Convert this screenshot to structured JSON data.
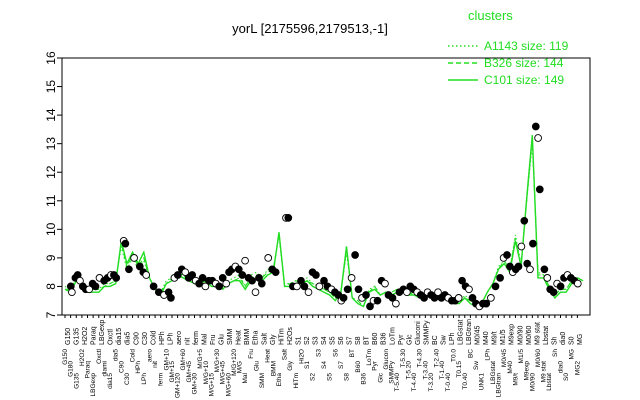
{
  "chart_data": {
    "type": "line",
    "title": "yorL [2175596,2179513,-1]",
    "xlabel": "",
    "ylabel": "",
    "ylim": [
      7,
      16
    ],
    "yticks": [
      7,
      8,
      9,
      10,
      11,
      12,
      13,
      14,
      15,
      16
    ],
    "grid": false,
    "legend_title": "clusters",
    "legend_position": "top-right",
    "legend": [
      {
        "name": "A1143 size: 119",
        "style": "dotted"
      },
      {
        "name": "B326 size: 144",
        "style": "dashed"
      },
      {
        "name": "C101 size: 149",
        "style": "solid"
      }
    ],
    "x_tick_labels": [
      "G150",
      "G180",
      "G135",
      "H2O2",
      "Paraq",
      "LBGexp",
      "Oxctl",
      "diami",
      "dia15",
      "dia5",
      "C90",
      "C30",
      "Cold",
      "HPh",
      "LPh",
      "aero",
      "nit",
      "ferm",
      "GM+10",
      "GM+15",
      "GM+120",
      "GM+60",
      "GM+45",
      "GM+30",
      "M/G+5",
      "M/G+10",
      "M/G+15",
      "M/G+30",
      "M/G+45",
      "M/G+60",
      "M/G+120",
      "M/G",
      "Mal",
      "Fru",
      "Glu",
      "SMM",
      "Heat",
      "BMM",
      "Etha",
      "Salt",
      "Gly",
      "HiTm",
      "Hi2O",
      "S1",
      "S2",
      "S3",
      "S4",
      "S5",
      "S6",
      "S7",
      "S8",
      "BT",
      "B60",
      "B36",
      "LoTm",
      "Pyr",
      "Glc",
      "Glucon",
      "SMMPy",
      "T-5.40",
      "T-5.30",
      "T-5.20",
      "T-4.40",
      "T-4.30",
      "T-3.40",
      "T-3.20",
      "T-2.40",
      "T-1.40",
      "T-0.40",
      "T0.0",
      "T0.15",
      "T0.40",
      "BC",
      "Sw",
      "UNK1",
      "LPh",
      "LBGstat",
      "LBGtran",
      "M0/45",
      "M40",
      "M9/t",
      "M1/5",
      "M9exp",
      "M0/90",
      "M0/60",
      "M9 stat",
      "Lbstat",
      "Sh",
      "dia0",
      "S0",
      "MG",
      "MG2"
    ],
    "marked_labels": [
      "G150",
      "G135",
      "H2O2",
      "Paraq",
      "LBGexp",
      "Oxctl",
      "dia15",
      "dia5",
      "C90",
      "C30",
      "Cold",
      "HPh",
      "LPh",
      "aero",
      "nit",
      "ferm",
      "Mal",
      "Fru",
      "Glu",
      "SMM",
      "Heat",
      "BMM",
      "Etha",
      "Salt",
      "Gly",
      "HiTm",
      "H2Os",
      "S1",
      "S2",
      "S3",
      "S4",
      "S5",
      "S6",
      "S7",
      "S8",
      "BT",
      "B60",
      "B36",
      "LoTm",
      "Pyr",
      "Glc",
      "Gluconi",
      "SMMPy",
      "BC",
      "Sw",
      "LPh",
      "LBGstat",
      "LBGtran",
      "M0/45",
      "M40",
      "M9/t",
      "M1/5",
      "M9exp",
      "M0/90",
      "M0/60",
      "M9 stat",
      "Lbstat",
      "Sh",
      "dia0",
      "S0",
      "MG"
    ],
    "series": [
      {
        "name": "A1143 size: 119",
        "style": "dotted",
        "values": [
          8.0,
          7.9,
          8.3,
          8.2,
          7.8,
          7.9,
          7.9,
          8.1,
          8.1,
          8.2,
          9.4,
          8.6,
          9.0,
          8.6,
          8.9,
          8.3,
          7.9,
          7.8,
          8.2,
          8.3,
          8.5,
          8.4,
          8.2,
          8.1,
          8.2,
          8.3,
          8.1,
          8.1,
          8.0,
          8.2,
          8.3,
          8.4,
          8.0,
          8.4,
          8.5,
          8.3,
          8.6,
          8.6,
          9.8,
          8.1,
          8.1,
          8.2,
          8.2,
          8.3,
          8.1,
          8.0,
          7.9,
          7.8,
          7.6,
          7.8,
          9.2,
          7.6,
          7.5,
          7.3,
          7.9,
          8.0,
          7.7,
          7.8,
          7.8,
          7.9,
          7.9,
          7.8,
          7.8,
          7.7,
          7.8,
          7.8,
          7.7,
          7.7,
          7.6,
          7.5,
          7.4,
          7.7,
          7.5,
          7.4,
          7.4,
          7.8,
          8.1,
          8.7,
          8.9,
          8.6,
          9.8,
          8.8,
          11.0,
          13.0,
          8.5,
          8.4,
          8.0,
          7.7,
          7.9,
          7.9,
          8.2,
          8.3,
          8.2
        ]
      },
      {
        "name": "B326 size: 144",
        "style": "dashed",
        "values": [
          7.9,
          7.9,
          8.2,
          8.1,
          7.8,
          7.9,
          7.9,
          8.0,
          8.1,
          8.2,
          9.5,
          8.7,
          9.1,
          8.7,
          9.0,
          8.3,
          7.9,
          7.8,
          8.1,
          8.3,
          8.4,
          8.4,
          8.2,
          8.1,
          8.1,
          8.2,
          8.1,
          8.0,
          8.0,
          8.1,
          8.2,
          8.3,
          8.0,
          8.3,
          8.4,
          8.3,
          8.5,
          8.6,
          9.8,
          8.0,
          8.1,
          8.2,
          8.1,
          8.2,
          8.1,
          8.0,
          7.9,
          7.8,
          7.6,
          7.8,
          9.3,
          7.6,
          7.5,
          7.3,
          7.8,
          8.0,
          7.7,
          7.8,
          7.8,
          7.9,
          7.9,
          7.8,
          7.7,
          7.7,
          7.7,
          7.7,
          7.7,
          7.7,
          7.6,
          7.5,
          7.4,
          7.6,
          7.5,
          7.4,
          7.4,
          7.8,
          8.1,
          8.6,
          8.9,
          8.6,
          9.7,
          8.7,
          11.0,
          13.2,
          8.4,
          8.4,
          8.0,
          7.7,
          7.9,
          7.9,
          8.2,
          8.3,
          8.2
        ]
      },
      {
        "name": "C101 size: 149",
        "style": "solid",
        "values": [
          7.9,
          7.8,
          8.2,
          8.1,
          7.8,
          7.8,
          7.8,
          8.0,
          8.0,
          8.1,
          9.6,
          8.8,
          9.2,
          8.8,
          9.2,
          8.3,
          7.9,
          7.7,
          8.1,
          8.2,
          8.4,
          8.3,
          8.2,
          8.1,
          8.1,
          8.2,
          8.0,
          8.0,
          7.9,
          8.1,
          8.2,
          8.2,
          7.9,
          8.2,
          8.3,
          8.2,
          8.4,
          8.5,
          9.9,
          8.0,
          8.0,
          8.1,
          8.1,
          8.2,
          8.0,
          7.9,
          7.8,
          7.7,
          7.5,
          7.8,
          9.4,
          7.6,
          7.4,
          7.3,
          7.8,
          7.9,
          7.7,
          7.8,
          7.7,
          7.8,
          7.8,
          7.7,
          7.7,
          7.6,
          7.7,
          7.7,
          7.6,
          7.6,
          7.5,
          7.4,
          7.4,
          7.6,
          7.4,
          7.3,
          7.4,
          7.8,
          8.1,
          8.6,
          8.8,
          8.5,
          9.6,
          8.7,
          11.1,
          13.3,
          8.3,
          8.3,
          7.9,
          7.6,
          7.8,
          7.8,
          8.1,
          8.3,
          8.2
        ]
      }
    ],
    "points": [
      [
        1.0,
        8.0
      ],
      [
        1.2,
        7.8
      ],
      [
        1.8,
        8.3
      ],
      [
        2.2,
        8.4
      ],
      [
        2.6,
        8.2
      ],
      [
        3.1,
        8.0
      ],
      [
        3.6,
        7.9
      ],
      [
        4.2,
        7.9
      ],
      [
        4.8,
        8.1
      ],
      [
        5.3,
        8.0
      ],
      [
        6.0,
        8.3
      ],
      [
        6.8,
        8.2
      ],
      [
        7.4,
        8.3
      ],
      [
        8.0,
        8.4
      ],
      [
        8.5,
        8.4
      ],
      [
        8.9,
        8.3
      ],
      [
        10.2,
        9.6
      ],
      [
        10.5,
        9.5
      ],
      [
        11.1,
        8.6
      ],
      [
        12.0,
        9.0
      ],
      [
        13.0,
        8.7
      ],
      [
        13.6,
        8.5
      ],
      [
        14.1,
        8.4
      ],
      [
        15.4,
        8.0
      ],
      [
        16.3,
        7.8
      ],
      [
        17.2,
        7.7
      ],
      [
        18.0,
        7.8
      ],
      [
        18.4,
        7.6
      ],
      [
        19.0,
        8.3
      ],
      [
        19.6,
        8.4
      ],
      [
        20.3,
        8.6
      ],
      [
        20.9,
        8.5
      ],
      [
        21.5,
        8.3
      ],
      [
        22.1,
        8.4
      ],
      [
        22.7,
        8.2
      ],
      [
        23.3,
        8.1
      ],
      [
        23.9,
        8.3
      ],
      [
        24.4,
        8.0
      ],
      [
        25.0,
        8.2
      ],
      [
        25.6,
        8.2
      ],
      [
        26.2,
        8.1
      ],
      [
        26.8,
        8.0
      ],
      [
        27.4,
        8.3
      ],
      [
        28.0,
        8.1
      ],
      [
        28.5,
        8.5
      ],
      [
        29.0,
        8.6
      ],
      [
        29.6,
        8.7
      ],
      [
        30.2,
        8.6
      ],
      [
        30.8,
        8.4
      ],
      [
        31.3,
        8.9
      ],
      [
        31.9,
        8.3
      ],
      [
        32.5,
        8.2
      ],
      [
        33.1,
        7.8
      ],
      [
        33.7,
        8.3
      ],
      [
        34.2,
        8.1
      ],
      [
        35.3,
        9.0
      ],
      [
        36.0,
        8.6
      ],
      [
        36.6,
        8.5
      ],
      [
        38.4,
        10.4
      ],
      [
        38.8,
        10.4
      ],
      [
        39.6,
        8.0
      ],
      [
        40.3,
        8.0
      ],
      [
        41.0,
        8.2
      ],
      [
        41.6,
        8.0
      ],
      [
        42.3,
        7.8
      ],
      [
        43.0,
        8.5
      ],
      [
        43.6,
        8.4
      ],
      [
        44.2,
        8.0
      ],
      [
        45.0,
        8.2
      ],
      [
        45.6,
        8.0
      ],
      [
        46.3,
        7.9
      ],
      [
        46.9,
        7.8
      ],
      [
        47.5,
        7.7
      ],
      [
        48.0,
        7.5
      ],
      [
        48.4,
        7.6
      ],
      [
        49.1,
        7.9
      ],
      [
        49.8,
        8.3
      ],
      [
        50.4,
        9.1
      ],
      [
        51.0,
        7.9
      ],
      [
        51.6,
        7.6
      ],
      [
        52.3,
        7.7
      ],
      [
        53.0,
        7.3
      ],
      [
        53.6,
        7.5
      ],
      [
        54.3,
        7.5
      ],
      [
        55.0,
        8.2
      ],
      [
        55.6,
        8.1
      ],
      [
        56.2,
        7.7
      ],
      [
        56.9,
        7.6
      ],
      [
        57.5,
        7.4
      ],
      [
        58.1,
        7.8
      ],
      [
        58.8,
        7.9
      ],
      [
        59.4,
        7.8
      ],
      [
        60.0,
        8.0
      ],
      [
        60.6,
        7.9
      ],
      [
        61.2,
        7.8
      ],
      [
        61.8,
        7.7
      ],
      [
        62.4,
        7.6
      ],
      [
        63.0,
        7.8
      ],
      [
        63.6,
        7.7
      ],
      [
        64.2,
        7.6
      ],
      [
        64.8,
        7.8
      ],
      [
        65.4,
        7.6
      ],
      [
        66.0,
        7.7
      ],
      [
        66.6,
        7.6
      ],
      [
        67.2,
        7.5
      ],
      [
        67.8,
        7.5
      ],
      [
        68.4,
        7.6
      ],
      [
        69.0,
        8.2
      ],
      [
        69.6,
        8.0
      ],
      [
        70.2,
        7.9
      ],
      [
        70.8,
        7.6
      ],
      [
        71.4,
        7.4
      ],
      [
        72.0,
        7.3
      ],
      [
        72.6,
        7.4
      ],
      [
        73.2,
        7.4
      ],
      [
        74.0,
        7.6
      ],
      [
        74.8,
        8.0
      ],
      [
        75.6,
        8.3
      ],
      [
        76.2,
        9.0
      ],
      [
        76.8,
        9.1
      ],
      [
        77.3,
        8.7
      ],
      [
        77.8,
        8.5
      ],
      [
        78.3,
        8.6
      ],
      [
        78.8,
        8.7
      ],
      [
        79.3,
        9.4
      ],
      [
        79.8,
        10.3
      ],
      [
        80.3,
        8.8
      ],
      [
        80.8,
        8.6
      ],
      [
        81.3,
        9.5
      ],
      [
        81.8,
        13.6
      ],
      [
        82.2,
        13.2
      ],
      [
        82.5,
        11.4
      ],
      [
        83.3,
        8.6
      ],
      [
        83.8,
        8.3
      ],
      [
        84.3,
        7.9
      ],
      [
        84.9,
        7.8
      ],
      [
        85.5,
        8.1
      ],
      [
        86.1,
        8.0
      ],
      [
        86.7,
        8.3
      ],
      [
        87.3,
        8.4
      ],
      [
        87.9,
        8.3
      ],
      [
        88.5,
        8.2
      ],
      [
        89.1,
        8.1
      ]
    ]
  }
}
